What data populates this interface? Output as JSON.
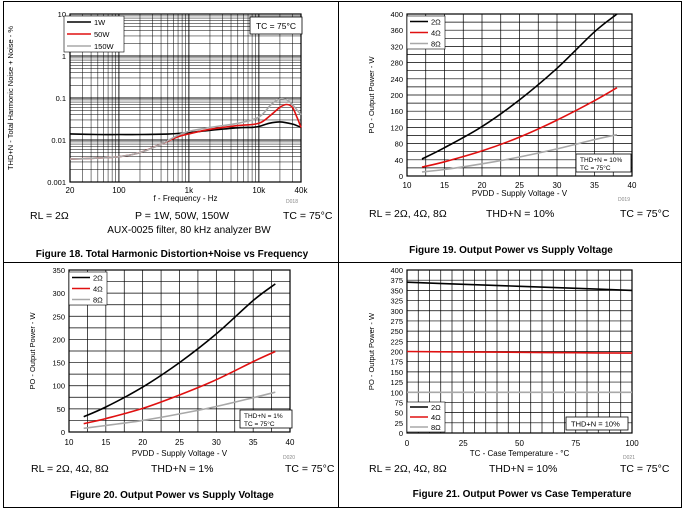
{
  "figures": [
    {
      "caption": "Figure 18. Total Harmonic Distortion+Noise vs Frequency",
      "conditions": [
        "RL = 2Ω",
        "P = 1W, 50W, 150W",
        "TC = 75°C"
      ],
      "sub_condition": "AUX-0025 filter, 80 kHz analyzer BW",
      "corner_label": "D018",
      "tc_box": "TC = 75°C"
    },
    {
      "caption": "Figure 19. Output Power vs Supply Voltage",
      "conditions": [
        "RL = 2Ω, 4Ω, 8Ω",
        "THD+N = 10%",
        "TC = 75°C"
      ],
      "corner_label": "D019",
      "note_lines": [
        "THD+N = 10%",
        "TC = 75°C"
      ]
    },
    {
      "caption": "Figure 20. Output Power vs Supply Voltage",
      "conditions": [
        "RL = 2Ω, 4Ω, 8Ω",
        "THD+N = 1%",
        "TC = 75°C"
      ],
      "corner_label": "D020",
      "note_lines": [
        "THD+N = 1%",
        "TC = 75°C"
      ]
    },
    {
      "caption": "Figure 21. Output Power vs Case Temperature",
      "conditions": [
        "RL = 2Ω, 4Ω, 8Ω",
        "THD+N = 10%",
        "TC = 75°C"
      ],
      "corner_label": "D021",
      "note_lines": [
        "THD+N = 10%"
      ]
    }
  ],
  "chart_data": [
    {
      "type": "line",
      "title": "Total Harmonic Distortion+Noise vs Frequency",
      "xlabel": "f - Frequency - Hz",
      "ylabel": "THD+N - Total Harmonic Noise + Noise - %",
      "xscale": "log",
      "yscale": "log",
      "xlim": [
        20,
        40000
      ],
      "ylim": [
        0.001,
        10
      ],
      "xticks": [
        20,
        100,
        1000,
        10000,
        40000
      ],
      "xtick_labels": [
        "20",
        "100",
        "1k",
        "10k",
        "40k"
      ],
      "yticks": [
        0.001,
        0.01,
        0.1,
        1,
        10
      ],
      "ytick_labels": [
        "0.001",
        "0.01",
        "0.1",
        "1",
        "10"
      ],
      "legend_position": "top-left",
      "series": [
        {
          "name": "1W",
          "color": "#000000",
          "x": [
            20,
            50,
            100,
            200,
            500,
            1000,
            2000,
            5000,
            8000,
            10000,
            14000,
            20000,
            30000,
            40000
          ],
          "y": [
            0.014,
            0.0135,
            0.0135,
            0.0135,
            0.0138,
            0.015,
            0.017,
            0.0195,
            0.02,
            0.021,
            0.025,
            0.027,
            0.024,
            0.02
          ]
        },
        {
          "name": "50W",
          "color": "#e01010",
          "x": [
            20,
            50,
            100,
            200,
            400,
            700,
            1000,
            2000,
            5000,
            10000,
            15000,
            20000,
            25000,
            30000,
            35000,
            40000
          ],
          "y": [
            0.0035,
            0.0037,
            0.004,
            0.005,
            0.008,
            0.012,
            0.014,
            0.018,
            0.022,
            0.025,
            0.04,
            0.06,
            0.07,
            0.06,
            0.035,
            0.02
          ]
        },
        {
          "name": "150W",
          "color": "#a8a8a8",
          "x": [
            20,
            50,
            100,
            200,
            400,
            700,
            1000,
            2000,
            5000,
            10000,
            15000,
            20000,
            25000,
            30000,
            40000
          ],
          "y": [
            0.0035,
            0.0037,
            0.004,
            0.005,
            0.008,
            0.013,
            0.016,
            0.02,
            0.025,
            0.035,
            0.07,
            0.095,
            0.09,
            0.07,
            0.04
          ]
        }
      ]
    },
    {
      "type": "line",
      "title": "Output Power vs Supply Voltage",
      "xlabel": "PVDD - Supply Voltage - V",
      "ylabel": "PO - Output Power - W",
      "xlim": [
        10,
        40
      ],
      "ylim": [
        0,
        400
      ],
      "xticks": [
        10,
        15,
        20,
        25,
        30,
        35,
        40
      ],
      "xtick_labels": [
        "10",
        "15",
        "20",
        "25",
        "30",
        "35",
        "40"
      ],
      "yticks": [
        0,
        40,
        80,
        120,
        160,
        200,
        240,
        280,
        320,
        360,
        400
      ],
      "ytick_labels": [
        "0",
        "40",
        "80",
        "120",
        "160",
        "200",
        "240",
        "280",
        "320",
        "360",
        "400"
      ],
      "legend_position": "top-left",
      "series": [
        {
          "name": "2Ω",
          "color": "#000000",
          "x": [
            12,
            15,
            20,
            25,
            30,
            35,
            38
          ],
          "y": [
            42,
            70,
            122,
            188,
            266,
            356,
            400
          ]
        },
        {
          "name": "4Ω",
          "color": "#e01010",
          "x": [
            12,
            15,
            20,
            25,
            30,
            35,
            38
          ],
          "y": [
            22,
            35,
            62,
            96,
            138,
            186,
            218
          ]
        },
        {
          "name": "8Ω",
          "color": "#a8a8a8",
          "x": [
            12,
            15,
            20,
            25,
            30,
            35,
            38
          ],
          "y": [
            10,
            16,
            30,
            47,
            67,
            90,
            102
          ]
        }
      ]
    },
    {
      "type": "line",
      "title": "Output Power vs Supply Voltage",
      "xlabel": "PVDD - Supply Voltage - V",
      "ylabel": "PO - Output Power - W",
      "xlim": [
        10,
        40
      ],
      "ylim": [
        0,
        350
      ],
      "xticks": [
        10,
        15,
        20,
        25,
        30,
        35,
        40
      ],
      "xtick_labels": [
        "10",
        "15",
        "20",
        "25",
        "30",
        "35",
        "40"
      ],
      "yticks": [
        0,
        50,
        100,
        150,
        200,
        250,
        300,
        350
      ],
      "ytick_labels": [
        "0",
        "50",
        "100",
        "150",
        "200",
        "250",
        "300",
        "350"
      ],
      "legend_position": "top-left",
      "series": [
        {
          "name": "2Ω",
          "color": "#000000",
          "x": [
            12,
            15,
            20,
            25,
            30,
            35,
            38
          ],
          "y": [
            33,
            54,
            97,
            150,
            212,
            284,
            320
          ]
        },
        {
          "name": "4Ω",
          "color": "#e01010",
          "x": [
            12,
            15,
            20,
            25,
            30,
            35,
            38
          ],
          "y": [
            18,
            29,
            51,
            80,
            113,
            152,
            174
          ]
        },
        {
          "name": "8Ω",
          "color": "#a8a8a8",
          "x": [
            12,
            15,
            20,
            25,
            30,
            35,
            38
          ],
          "y": [
            8,
            14,
            25,
            39,
            55,
            74,
            86
          ]
        }
      ]
    },
    {
      "type": "line",
      "title": "Output Power vs Case Temperature",
      "xlabel": "TC - Case Temperature - °C",
      "ylabel": "PO - Output Power - W",
      "xlim": [
        0,
        100
      ],
      "ylim": [
        0,
        400
      ],
      "xticks": [
        0,
        25,
        50,
        75,
        100
      ],
      "xtick_labels": [
        "0",
        "25",
        "50",
        "75",
        "100"
      ],
      "yticks": [
        0,
        25,
        50,
        75,
        100,
        125,
        150,
        175,
        200,
        225,
        250,
        275,
        300,
        325,
        350,
        375,
        400
      ],
      "ytick_labels": [
        "0",
        "25",
        "50",
        "75",
        "100",
        "125",
        "150",
        "175",
        "200",
        "225",
        "250",
        "275",
        "300",
        "325",
        "350",
        "375",
        "400"
      ],
      "legend_position": "bottom-left",
      "series": [
        {
          "name": "2Ω",
          "color": "#000000",
          "x": [
            0,
            25,
            50,
            75,
            100
          ],
          "y": [
            370,
            365,
            360,
            355,
            350
          ]
        },
        {
          "name": "4Ω",
          "color": "#e01010",
          "x": [
            0,
            25,
            50,
            75,
            100
          ],
          "y": [
            200,
            199,
            198,
            197,
            196
          ]
        },
        {
          "name": "8Ω",
          "color": "#a8a8a8",
          "x": [
            0,
            25,
            50,
            75,
            100
          ],
          "y": [
            100,
            100,
            100,
            100,
            100
          ]
        }
      ]
    }
  ]
}
